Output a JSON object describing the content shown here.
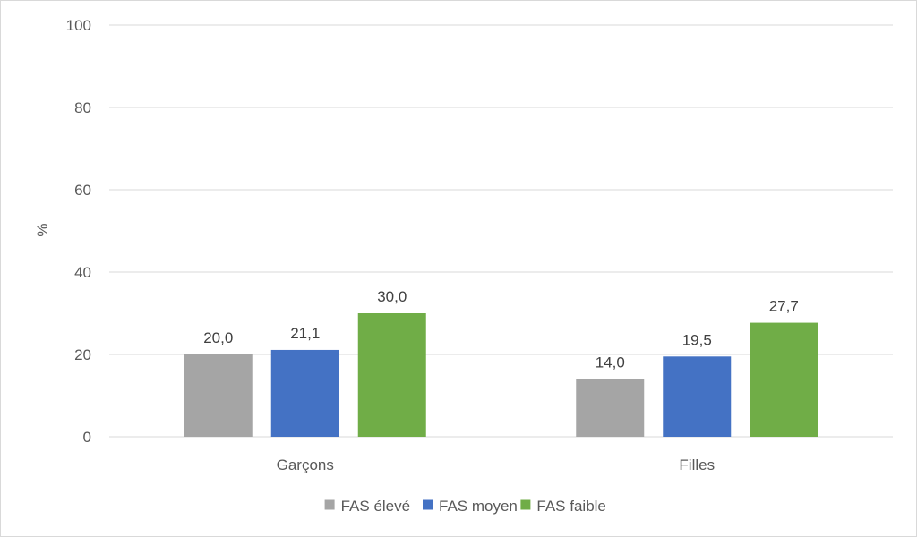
{
  "chart_data": {
    "type": "bar",
    "categories": [
      "Garçons",
      "Filles"
    ],
    "series": [
      {
        "name": "FAS élevé",
        "color": "#a5a5a5",
        "values": [
          20.0,
          14.0
        ],
        "labels": [
          "20,0",
          "14,0"
        ]
      },
      {
        "name": "FAS moyen",
        "color": "#4472c4",
        "values": [
          21.1,
          19.5
        ],
        "labels": [
          "21,1",
          "19,5"
        ]
      },
      {
        "name": "FAS faible",
        "color": "#70ad47",
        "values": [
          30.0,
          27.7
        ],
        "labels": [
          "30,0",
          "27,7"
        ]
      }
    ],
    "ylabel": "%",
    "xlabel": "",
    "ylim": [
      0,
      100
    ],
    "yticks": [
      0,
      20,
      40,
      60,
      80,
      100
    ],
    "grid": true,
    "legend": "bottom"
  }
}
